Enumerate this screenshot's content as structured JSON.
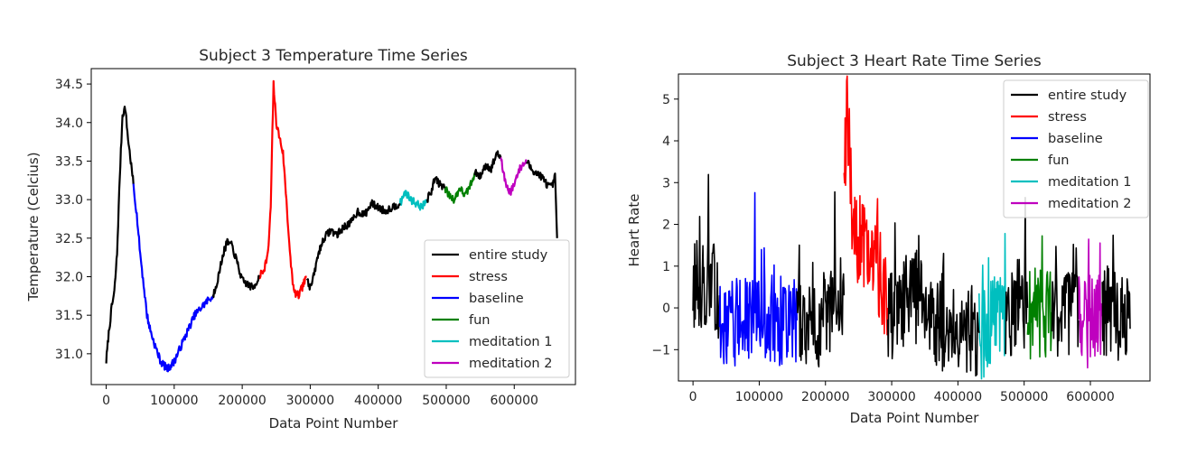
{
  "chart_data": [
    {
      "type": "line",
      "title": "Subject 3 Temperature Time Series",
      "xlabel": "Data Point Number",
      "ylabel": "Temperature (Celcius)",
      "xlim": [
        -22000,
        690000
      ],
      "ylim": [
        30.6,
        34.7
      ],
      "xticks": [
        0,
        100000,
        200000,
        300000,
        400000,
        500000,
        600000
      ],
      "xtick_labels": [
        "0",
        "100000",
        "200000",
        "300000",
        "400000",
        "500000",
        "600000"
      ],
      "yticks": [
        31.0,
        31.5,
        32.0,
        32.5,
        33.0,
        33.5,
        34.0,
        34.5
      ],
      "ytick_labels": [
        "31.0",
        "31.5",
        "32.0",
        "32.5",
        "33.0",
        "33.5",
        "34.0",
        "34.5"
      ],
      "grid": false,
      "legend_position": "lower-right",
      "noise": 0.05,
      "series": [
        {
          "name": "entire study",
          "color": "#000000",
          "x": [
            0,
            3000,
            8000,
            12000,
            16000,
            20000,
            24000,
            28000,
            32000,
            36000,
            40000
          ],
          "y": [
            30.9,
            31.2,
            31.6,
            31.8,
            32.3,
            33.3,
            34.1,
            34.2,
            33.8,
            33.5,
            33.2
          ]
        },
        {
          "name": "stress",
          "color": "#ff0000",
          "x": [
            225000,
            232000,
            238000,
            242000,
            246000,
            250000,
            255000,
            260000,
            265000,
            270000,
            276000,
            283000,
            290000,
            295000
          ],
          "y": [
            32.0,
            32.1,
            32.3,
            32.9,
            34.5,
            34.0,
            33.8,
            33.6,
            33.0,
            32.3,
            31.8,
            31.75,
            31.9,
            32.0
          ]
        },
        {
          "name": "baseline",
          "color": "#0000ff",
          "x": [
            40000,
            45000,
            50000,
            55000,
            60000,
            65000,
            72000,
            80000,
            90000,
            100000,
            110000,
            120000,
            130000,
            140000,
            150000,
            157000
          ],
          "y": [
            33.2,
            32.8,
            32.3,
            31.9,
            31.5,
            31.3,
            31.1,
            30.9,
            30.8,
            30.9,
            31.1,
            31.3,
            31.5,
            31.6,
            31.7,
            31.75
          ]
        },
        {
          "name": "fun",
          "color": "#008000",
          "x": [
            498000,
            505000,
            512000,
            520000,
            528000,
            536000,
            542000
          ],
          "y": [
            33.15,
            33.05,
            33.0,
            33.15,
            33.05,
            33.2,
            33.35
          ]
        },
        {
          "name": "meditation 1",
          "color": "#00bfbf",
          "x": [
            432000,
            440000,
            448000,
            456000,
            464000,
            472000
          ],
          "y": [
            32.95,
            33.1,
            33.0,
            32.95,
            32.9,
            33.0
          ]
        },
        {
          "name": "meditation 2",
          "color": "#bf00bf",
          "x": [
            580000,
            585000,
            590000,
            595000,
            600000,
            605000,
            612000,
            618000
          ],
          "y": [
            33.55,
            33.3,
            33.15,
            33.1,
            33.2,
            33.35,
            33.45,
            33.5
          ]
        },
        {
          "name": "entire study",
          "color": "#000000",
          "x": [
            157000,
            165000,
            172000,
            178000,
            185000,
            192000,
            200000,
            208000,
            216000,
            225000
          ],
          "y": [
            31.75,
            32.0,
            32.3,
            32.45,
            32.4,
            32.2,
            31.95,
            31.9,
            31.85,
            32.0
          ]
        },
        {
          "name": "entire study",
          "color": "#000000",
          "x": [
            295000,
            300000,
            305000,
            312000,
            320000,
            330000,
            340000,
            350000,
            360000,
            370000,
            380000,
            390000,
            400000,
            410000,
            420000,
            432000
          ],
          "y": [
            32.0,
            31.85,
            32.0,
            32.3,
            32.5,
            32.6,
            32.55,
            32.65,
            32.7,
            32.85,
            32.8,
            32.95,
            32.9,
            32.85,
            32.9,
            32.95
          ]
        },
        {
          "name": "entire study",
          "color": "#000000",
          "x": [
            472000,
            478000,
            484000,
            490000,
            498000
          ],
          "y": [
            33.0,
            33.1,
            33.3,
            33.2,
            33.15
          ]
        },
        {
          "name": "entire study",
          "color": "#000000",
          "x": [
            542000,
            550000,
            558000,
            566000,
            574000,
            580000
          ],
          "y": [
            33.35,
            33.3,
            33.45,
            33.4,
            33.6,
            33.55
          ]
        },
        {
          "name": "entire study",
          "color": "#000000",
          "x": [
            618000,
            625000,
            632000,
            640000,
            648000,
            655000,
            660000,
            663000
          ],
          "y": [
            33.5,
            33.4,
            33.35,
            33.3,
            33.2,
            33.15,
            33.3,
            32.5
          ]
        }
      ]
    },
    {
      "type": "line",
      "title": "Subject 3 Heart Rate Time Series",
      "xlabel": "Data Point Number",
      "ylabel": "Heart Rate",
      "xlim": [
        -22000,
        690000
      ],
      "ylim": [
        -1.75,
        5.6
      ],
      "xticks": [
        0,
        100000,
        200000,
        300000,
        400000,
        500000,
        600000
      ],
      "xtick_labels": [
        "0",
        "100000",
        "200000",
        "300000",
        "400000",
        "500000",
        "600000"
      ],
      "yticks": [
        -1,
        0,
        1,
        2,
        3,
        4,
        5
      ],
      "ytick_labels": [
        "−1",
        "0",
        "1",
        "2",
        "3",
        "4",
        "5"
      ],
      "grid": false,
      "legend_position": "upper-right",
      "noise": 1.1,
      "series": [
        {
          "name": "entire study",
          "color": "#000000",
          "x": [
            0,
            5000,
            10000,
            15000,
            20000,
            25000,
            30000,
            35000,
            40000
          ],
          "y": [
            0.5,
            0.6,
            0.4,
            0.7,
            0.5,
            0.6,
            0.4,
            0.5,
            0.3
          ]
        },
        {
          "name": "stress",
          "color": "#ff0000",
          "x": [
            228000,
            232000,
            236000,
            240000,
            246000,
            252000,
            258000,
            264000,
            270000,
            276000,
            282000,
            288000,
            294000
          ],
          "y": [
            3.0,
            4.5,
            3.8,
            2.5,
            1.5,
            1.8,
            1.4,
            1.3,
            1.0,
            1.2,
            0.8,
            0.5,
            0.0
          ]
        },
        {
          "name": "baseline",
          "color": "#0000ff",
          "x": [
            40000,
            55000,
            70000,
            85000,
            100000,
            115000,
            130000,
            145000,
            157000
          ],
          "y": [
            -0.2,
            -0.3,
            -0.3,
            -0.4,
            -0.3,
            -0.3,
            -0.35,
            -0.3,
            -0.3
          ]
        },
        {
          "name": "fun",
          "color": "#008000",
          "x": [
            505000,
            512000,
            520000,
            528000,
            536000,
            542000
          ],
          "y": [
            0.0,
            -0.2,
            0.1,
            -0.3,
            0.0,
            -0.1
          ]
        },
        {
          "name": "meditation 1",
          "color": "#00bfbf",
          "x": [
            432000,
            440000,
            448000,
            456000,
            464000,
            472000
          ],
          "y": [
            -0.7,
            -0.6,
            -0.4,
            -0.3,
            -0.2,
            -0.4
          ]
        },
        {
          "name": "meditation 2",
          "color": "#bf00bf",
          "x": [
            582000,
            588000,
            594000,
            600000,
            606000,
            612000,
            618000
          ],
          "y": [
            -0.3,
            -0.5,
            -0.4,
            -0.2,
            -0.3,
            -0.1,
            -0.2
          ]
        },
        {
          "name": "entire study",
          "color": "#000000",
          "x": [
            157000,
            170000,
            185000,
            200000,
            215000,
            228000
          ],
          "y": [
            -0.3,
            -0.4,
            -0.5,
            -0.2,
            -0.1,
            0.3
          ]
        },
        {
          "name": "entire study",
          "color": "#000000",
          "x": [
            294000,
            310000,
            325000,
            340000,
            355000,
            370000,
            385000,
            400000,
            415000,
            432000
          ],
          "y": [
            -0.3,
            -0.1,
            0.3,
            0.2,
            -0.2,
            -0.5,
            -0.3,
            -0.4,
            -0.5,
            -0.6
          ]
        },
        {
          "name": "entire study",
          "color": "#000000",
          "x": [
            472000,
            485000,
            495000,
            505000
          ],
          "y": [
            -0.3,
            -0.1,
            0.2,
            0.0
          ]
        },
        {
          "name": "entire study",
          "color": "#000000",
          "x": [
            542000,
            555000,
            570000,
            582000
          ],
          "y": [
            -0.2,
            -0.3,
            -0.1,
            -0.3
          ]
        },
        {
          "name": "entire study",
          "color": "#000000",
          "x": [
            618000,
            630000,
            642000,
            652000,
            660000
          ],
          "y": [
            -0.1,
            0.0,
            -0.2,
            -0.3,
            -0.5
          ]
        }
      ]
    }
  ]
}
